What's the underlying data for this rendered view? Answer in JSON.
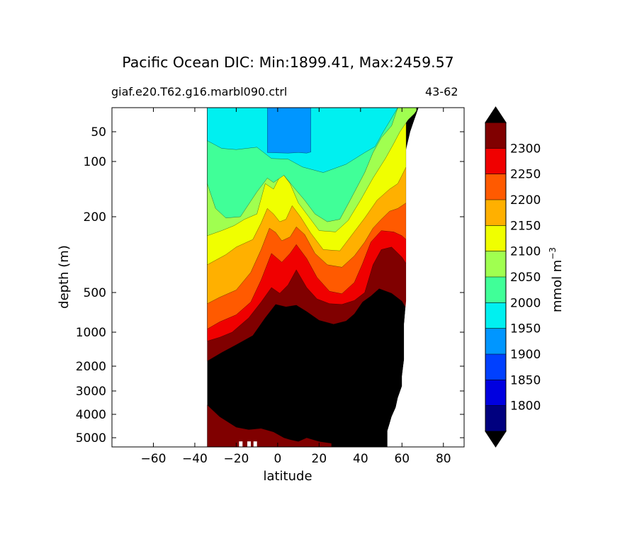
{
  "title": "Pacific Ocean DIC: Min:1899.41, Max:2459.57",
  "run_label": "giaf.e20.T62.g16.marbl090.ctrl",
  "years_label": "43-62",
  "chart_data": {
    "type": "heatmap",
    "title": "Pacific Ocean DIC: Min:1899.41, Max:2459.57",
    "xlabel": "latitude",
    "ylabel": "depth (m)",
    "xlim": [
      -80,
      90
    ],
    "ylim": [
      5500,
      10
    ],
    "y_scale": "log-like",
    "xticks": [
      -60,
      -40,
      -20,
      0,
      20,
      40,
      60,
      80
    ],
    "xtick_labels": [
      "−60",
      "−40",
      "−20",
      "0",
      "20",
      "40",
      "60",
      "80"
    ],
    "yticks": [
      50,
      100,
      200,
      500,
      1000,
      2000,
      3000,
      4000,
      5000
    ],
    "ytick_labels": [
      "50",
      "100",
      "200",
      "500",
      "1000",
      "2000",
      "3000",
      "4000",
      "5000"
    ],
    "colorbar": {
      "label": "mmol m",
      "label_superscript": "−3",
      "levels": [
        1750,
        1800,
        1850,
        1900,
        1950,
        2000,
        2050,
        2100,
        2150,
        2200,
        2250,
        2300,
        2350
      ],
      "tick_labels": [
        "1800",
        "1850",
        "1900",
        "1950",
        "2000",
        "2050",
        "2100",
        "2150",
        "2200",
        "2250",
        "2300"
      ],
      "colors": [
        "#00007f",
        "#0000e0",
        "#0040ff",
        "#0096ff",
        "#00f0f0",
        "#40ff98",
        "#a0ff50",
        "#f0ff00",
        "#ffb000",
        "#ff5a00",
        "#f00000",
        "#800000"
      ],
      "extend_min_color": "#000000",
      "extend_max_color": "#000000"
    },
    "layers": [
      {
        "level": 1950,
        "color": "#0096ff",
        "upper": [
          [
            -5,
            10
          ],
          [
            -5,
            85
          ],
          [
            5,
            86
          ],
          [
            10,
            85
          ],
          [
            14,
            86
          ],
          [
            16,
            84
          ],
          [
            16,
            10
          ]
        ]
      },
      {
        "level": 2000,
        "color": "#00f0f0",
        "upper": [
          [
            -34,
            10
          ],
          [
            -34,
            65
          ],
          [
            -27,
            78
          ],
          [
            -20,
            80
          ],
          [
            -10,
            76
          ],
          [
            -3,
            95
          ],
          [
            5,
            96
          ],
          [
            12,
            110
          ],
          [
            22,
            120
          ],
          [
            33,
            105
          ],
          [
            42,
            85
          ],
          [
            47,
            75
          ],
          [
            51,
            50
          ],
          [
            58,
            10
          ]
        ]
      },
      {
        "level": 2050,
        "color": "#40ff98",
        "upper": [
          [
            -34,
            140
          ],
          [
            -30,
            185
          ],
          [
            -25,
            205
          ],
          [
            -18,
            200
          ],
          [
            -10,
            155
          ],
          [
            -5,
            130
          ],
          [
            -2,
            138
          ],
          [
            3,
            125
          ],
          [
            8,
            148
          ],
          [
            13,
            170
          ],
          [
            18,
            195
          ],
          [
            24,
            220
          ],
          [
            30,
            210
          ],
          [
            35,
            170
          ],
          [
            42,
            120
          ],
          [
            46,
            85
          ],
          [
            50,
            60
          ],
          [
            55,
            40
          ],
          [
            58,
            10
          ]
        ]
      },
      {
        "level": 2100,
        "color": "#a0ff50",
        "upper": [
          [
            -34,
            275
          ],
          [
            -27,
            255
          ],
          [
            -21,
            235
          ],
          [
            -16,
            210
          ],
          [
            -10,
            195
          ],
          [
            -6,
            140
          ],
          [
            -2,
            150
          ],
          [
            2,
            120
          ],
          [
            6,
            140
          ],
          [
            10,
            175
          ],
          [
            15,
            200
          ],
          [
            20,
            255
          ],
          [
            28,
            260
          ],
          [
            34,
            215
          ],
          [
            40,
            170
          ],
          [
            46,
            130
          ],
          [
            52,
            95
          ],
          [
            56,
            70
          ],
          [
            59,
            50
          ],
          [
            63,
            30
          ],
          [
            66,
            20
          ],
          [
            67,
            15
          ],
          [
            67,
            10
          ]
        ]
      },
      {
        "level": 2150,
        "color": "#f0ff00",
        "upper": [
          [
            -34,
            390
          ],
          [
            -25,
            350
          ],
          [
            -20,
            320
          ],
          [
            -12,
            290
          ],
          [
            -8,
            225
          ],
          [
            -5,
            185
          ],
          [
            -2,
            195
          ],
          [
            1,
            220
          ],
          [
            4,
            210
          ],
          [
            7,
            180
          ],
          [
            11,
            200
          ],
          [
            16,
            265
          ],
          [
            22,
            330
          ],
          [
            30,
            335
          ],
          [
            36,
            270
          ],
          [
            42,
            205
          ],
          [
            48,
            170
          ],
          [
            54,
            150
          ],
          [
            58,
            140
          ],
          [
            60,
            125
          ],
          [
            62,
            110
          ]
        ]
      },
      {
        "level": 2200,
        "color": "#ffb000",
        "upper": [
          [
            -34,
            640
          ],
          [
            -28,
            560
          ],
          [
            -20,
            490
          ],
          [
            -13,
            420
          ],
          [
            -8,
            330
          ],
          [
            -4,
            245
          ],
          [
            -1,
            262
          ],
          [
            2,
            295
          ],
          [
            6,
            280
          ],
          [
            9,
            240
          ],
          [
            13,
            270
          ],
          [
            18,
            345
          ],
          [
            24,
            390
          ],
          [
            31,
            400
          ],
          [
            37,
            355
          ],
          [
            42,
            300
          ],
          [
            46,
            245
          ],
          [
            50,
            210
          ],
          [
            54,
            190
          ],
          [
            58,
            185
          ],
          [
            62,
            175
          ]
        ]
      },
      {
        "level": 2250,
        "color": "#ff5a00",
        "upper": [
          [
            -34,
            960
          ],
          [
            -28,
            870
          ],
          [
            -20,
            780
          ],
          [
            -13,
            620
          ],
          [
            -8,
            450
          ],
          [
            -3,
            345
          ],
          [
            2,
            380
          ],
          [
            6,
            345
          ],
          [
            9,
            310
          ],
          [
            14,
            365
          ],
          [
            19,
            440
          ],
          [
            25,
            495
          ],
          [
            31,
            515
          ],
          [
            37,
            460
          ],
          [
            41,
            385
          ],
          [
            45,
            300
          ],
          [
            50,
            255
          ],
          [
            56,
            260
          ],
          [
            60,
            275
          ],
          [
            62,
            290
          ]
        ]
      },
      {
        "level": 2300,
        "color": "#f00000",
        "upper": [
          [
            -34,
            1260
          ],
          [
            -28,
            1150
          ],
          [
            -22,
            1000
          ],
          [
            -14,
            820
          ],
          [
            -8,
            620
          ],
          [
            -3,
            480
          ],
          [
            1,
            510
          ],
          [
            5,
            470
          ],
          [
            9,
            410
          ],
          [
            14,
            480
          ],
          [
            19,
            580
          ],
          [
            25,
            640
          ],
          [
            31,
            650
          ],
          [
            37,
            600
          ],
          [
            42,
            500
          ],
          [
            46,
            390
          ],
          [
            50,
            330
          ],
          [
            55,
            320
          ],
          [
            60,
            360
          ],
          [
            62,
            385
          ]
        ]
      },
      {
        "level": 2350,
        "color": "#800000",
        "upper": [
          [
            -34,
            1850
          ],
          [
            -27,
            1600
          ],
          [
            -20,
            1370
          ],
          [
            -12,
            1100
          ],
          [
            -6,
            820
          ],
          [
            -1,
            650
          ],
          [
            4,
            680
          ],
          [
            9,
            660
          ],
          [
            14,
            740
          ],
          [
            20,
            850
          ],
          [
            27,
            900
          ],
          [
            33,
            860
          ],
          [
            37,
            770
          ],
          [
            41,
            620
          ],
          [
            45,
            545
          ],
          [
            49,
            485
          ],
          [
            55,
            510
          ],
          [
            60,
            610
          ],
          [
            62,
            700
          ]
        ]
      }
    ],
    "bottom_layer": {
      "level": 2350,
      "color": "#800000",
      "upper": [
        [
          -34,
          3600
        ],
        [
          -28,
          4100
        ],
        [
          -20,
          4550
        ],
        [
          -14,
          4650
        ],
        [
          -8,
          4600
        ],
        [
          -2,
          4750
        ],
        [
          3,
          5000
        ],
        [
          6,
          5100
        ],
        [
          10,
          5200
        ],
        [
          14,
          5000
        ],
        [
          20,
          5200
        ],
        [
          26,
          5300
        ]
      ]
    },
    "ocean_extent": {
      "south": -34,
      "north_profile": [
        [
          68,
          10
        ],
        [
          67,
          20
        ],
        [
          66,
          30
        ],
        [
          64,
          50
        ],
        [
          62,
          80
        ],
        [
          62,
          130
        ],
        [
          62,
          300
        ],
        [
          62,
          600
        ],
        [
          61,
          900
        ],
        [
          61,
          1800
        ],
        [
          60,
          2400
        ],
        [
          60,
          2800
        ],
        [
          58,
          3300
        ],
        [
          57,
          3700
        ],
        [
          55,
          4100
        ],
        [
          54,
          4400
        ],
        [
          53,
          4700
        ],
        [
          53,
          5500
        ]
      ],
      "gaps": [
        [
          -18,
          5200
        ],
        [
          -14,
          5200
        ],
        [
          -11,
          5200
        ]
      ]
    }
  }
}
